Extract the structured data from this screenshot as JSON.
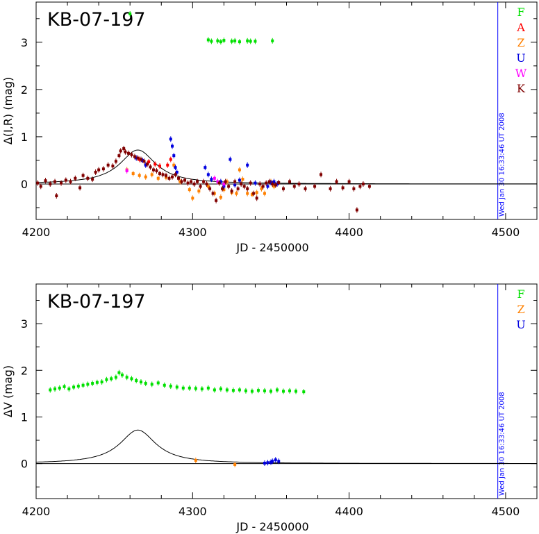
{
  "colors": {
    "F": "#00e000",
    "A": "#ff0000",
    "Z": "#ff8000",
    "U": "#0000e0",
    "W": "#ff00ff",
    "K": "#800000",
    "date_line": "#0000ff",
    "model": "#000000"
  },
  "chart_data": [
    {
      "type": "scatter",
      "title": "KB-07-197",
      "xlabel": "JD - 2450000",
      "ylabel": "Δ(I,R) (mag)",
      "xlim": [
        4200,
        4520
      ],
      "ylim": [
        -0.75,
        3.85
      ],
      "x_ticks": [
        4200,
        4300,
        4400,
        4500
      ],
      "y_ticks": [
        0,
        1,
        2,
        3
      ],
      "legend": [
        "F",
        "A",
        "Z",
        "U",
        "W",
        "K"
      ],
      "legend_position": "top-right",
      "date_line_x": 4495,
      "date_label": "Wed Jan 30 16:33:46 UT 2008",
      "model": {
        "t0": 4265,
        "peak": 0.72,
        "width": 14
      },
      "series": [
        {
          "name": "F",
          "points": [
            [
              4260,
              3.6
            ],
            [
              4310,
              3.05
            ],
            [
              4312,
              3.02
            ],
            [
              4316,
              3.03
            ],
            [
              4318,
              3.01
            ],
            [
              4320,
              3.04
            ],
            [
              4325,
              3.02
            ],
            [
              4327,
              3.03
            ],
            [
              4330,
              3.01
            ],
            [
              4335,
              3.03
            ],
            [
              4337,
              3.02
            ],
            [
              4340,
              3.02
            ],
            [
              4351,
              3.03
            ]
          ]
        },
        {
          "name": "A",
          "points": [
            [
              4266,
              0.52
            ],
            [
              4272,
              0.47
            ],
            [
              4276,
              0.42
            ],
            [
              4279,
              0.38
            ],
            [
              4284,
              0.4
            ],
            [
              4286,
              0.52
            ]
          ]
        },
        {
          "name": "Z",
          "points": [
            [
              4258,
              0.3
            ],
            [
              4262,
              0.22
            ],
            [
              4266,
              0.18
            ],
            [
              4270,
              0.15
            ],
            [
              4274,
              0.2
            ],
            [
              4278,
              0.12
            ],
            [
              4283,
              0.14
            ],
            [
              4288,
              0.4
            ],
            [
              4292,
              0.05
            ],
            [
              4298,
              -0.12
            ],
            [
              4300,
              -0.3
            ],
            [
              4304,
              -0.15
            ],
            [
              4310,
              -0.05
            ],
            [
              4314,
              -0.2
            ],
            [
              4318,
              -0.28
            ],
            [
              4320,
              -0.12
            ],
            [
              4322,
              0.05
            ],
            [
              4325,
              -0.18
            ],
            [
              4328,
              -0.2
            ],
            [
              4330,
              0.3
            ],
            [
              4332,
              0.1
            ],
            [
              4335,
              -0.2
            ],
            [
              4338,
              -0.22
            ],
            [
              4341,
              -0.18
            ],
            [
              4344,
              -0.1
            ],
            [
              4346,
              -0.2
            ],
            [
              4350,
              0.05
            ],
            [
              4352,
              -0.05
            ]
          ]
        },
        {
          "name": "U",
          "points": [
            [
              4264,
              0.55
            ],
            [
              4268,
              0.5
            ],
            [
              4270,
              0.4
            ],
            [
              4286,
              0.95
            ],
            [
              4287,
              0.8
            ],
            [
              4288,
              0.6
            ],
            [
              4289,
              0.35
            ],
            [
              4290,
              0.25
            ],
            [
              4308,
              0.35
            ],
            [
              4310,
              0.2
            ],
            [
              4312,
              0.1
            ],
            [
              4318,
              0.05
            ],
            [
              4320,
              -0.05
            ],
            [
              4324,
              0.52
            ],
            [
              4327,
              -0.02
            ],
            [
              4330,
              0.08
            ],
            [
              4335,
              0.4
            ],
            [
              4340,
              0.02
            ],
            [
              4348,
              -0.05
            ],
            [
              4350,
              0.03
            ],
            [
              4352,
              0.05
            ],
            [
              4354,
              0.0
            ]
          ]
        },
        {
          "name": "W",
          "points": [
            [
              4258,
              0.28
            ],
            [
              4314,
              0.12
            ],
            [
              4316,
              0.05
            ],
            [
              4320,
              0.0
            ]
          ]
        },
        {
          "name": "K",
          "points": [
            [
              4201,
              0.02
            ],
            [
              4203,
              -0.05
            ],
            [
              4206,
              0.07
            ],
            [
              4209,
              0.0
            ],
            [
              4212,
              0.05
            ],
            [
              4213,
              -0.25
            ],
            [
              4216,
              0.02
            ],
            [
              4219,
              0.08
            ],
            [
              4222,
              0.05
            ],
            [
              4225,
              0.12
            ],
            [
              4228,
              -0.08
            ],
            [
              4230,
              0.18
            ],
            [
              4233,
              0.12
            ],
            [
              4236,
              0.1
            ],
            [
              4238,
              0.25
            ],
            [
              4240,
              0.3
            ],
            [
              4243,
              0.32
            ],
            [
              4246,
              0.4
            ],
            [
              4249,
              0.38
            ],
            [
              4251,
              0.48
            ],
            [
              4253,
              0.6
            ],
            [
              4254,
              0.7
            ],
            [
              4256,
              0.75
            ],
            [
              4257,
              0.68
            ],
            [
              4259,
              0.65
            ],
            [
              4261,
              0.62
            ],
            [
              4263,
              0.58
            ],
            [
              4265,
              0.55
            ],
            [
              4267,
              0.52
            ],
            [
              4269,
              0.48
            ],
            [
              4271,
              0.42
            ],
            [
              4273,
              0.36
            ],
            [
              4275,
              0.3
            ],
            [
              4277,
              0.28
            ],
            [
              4279,
              0.22
            ],
            [
              4281,
              0.2
            ],
            [
              4283,
              0.18
            ],
            [
              4285,
              0.12
            ],
            [
              4287,
              0.15
            ],
            [
              4289,
              0.2
            ],
            [
              4291,
              0.12
            ],
            [
              4293,
              0.05
            ],
            [
              4295,
              0.08
            ],
            [
              4297,
              0.02
            ],
            [
              4299,
              0.05
            ],
            [
              4301,
              0.0
            ],
            [
              4303,
              0.05
            ],
            [
              4305,
              -0.05
            ],
            [
              4307,
              0.05
            ],
            [
              4309,
              0.0
            ],
            [
              4311,
              -0.1
            ],
            [
              4313,
              -0.2
            ],
            [
              4315,
              -0.35
            ],
            [
              4317,
              0.02
            ],
            [
              4319,
              -0.1
            ],
            [
              4321,
              0.05
            ],
            [
              4323,
              -0.05
            ],
            [
              4325,
              -0.15
            ],
            [
              4327,
              0.05
            ],
            [
              4329,
              -0.1
            ],
            [
              4331,
              0.0
            ],
            [
              4333,
              -0.05
            ],
            [
              4335,
              -0.1
            ],
            [
              4337,
              0.02
            ],
            [
              4339,
              -0.2
            ],
            [
              4341,
              -0.3
            ],
            [
              4343,
              0.0
            ],
            [
              4345,
              -0.05
            ],
            [
              4347,
              0.02
            ],
            [
              4349,
              0.05
            ],
            [
              4351,
              0.0
            ],
            [
              4353,
              -0.02
            ],
            [
              4355,
              0.03
            ],
            [
              4358,
              -0.1
            ],
            [
              4362,
              0.05
            ],
            [
              4365,
              -0.05
            ],
            [
              4368,
              0.0
            ],
            [
              4372,
              -0.1
            ],
            [
              4378,
              -0.05
            ],
            [
              4382,
              0.2
            ],
            [
              4388,
              -0.1
            ],
            [
              4392,
              0.05
            ],
            [
              4396,
              -0.08
            ],
            [
              4400,
              0.05
            ],
            [
              4403,
              -0.1
            ],
            [
              4405,
              -0.55
            ],
            [
              4407,
              -0.05
            ],
            [
              4409,
              0.0
            ],
            [
              4413,
              -0.05
            ]
          ]
        }
      ]
    },
    {
      "type": "scatter",
      "title": "KB-07-197",
      "xlabel": "JD - 2450000",
      "ylabel": "ΔV (mag)",
      "xlim": [
        4200,
        4520
      ],
      "ylim": [
        -0.75,
        3.85
      ],
      "x_ticks": [
        4200,
        4300,
        4400,
        4500
      ],
      "y_ticks": [
        0,
        1,
        2,
        3
      ],
      "legend": [
        "F",
        "Z",
        "U"
      ],
      "legend_position": "top-right",
      "date_line_x": 4495,
      "date_label": "Wed Jan 30 16:33:46 UT 2008",
      "model": {
        "t0": 4265,
        "peak": 0.72,
        "width": 14
      },
      "series": [
        {
          "name": "F",
          "points": [
            [
              4209,
              1.58
            ],
            [
              4212,
              1.6
            ],
            [
              4215,
              1.62
            ],
            [
              4218,
              1.65
            ],
            [
              4221,
              1.6
            ],
            [
              4224,
              1.64
            ],
            [
              4227,
              1.66
            ],
            [
              4230,
              1.68
            ],
            [
              4233,
              1.7
            ],
            [
              4236,
              1.72
            ],
            [
              4239,
              1.74
            ],
            [
              4242,
              1.75
            ],
            [
              4245,
              1.8
            ],
            [
              4248,
              1.82
            ],
            [
              4251,
              1.85
            ],
            [
              4253,
              1.95
            ],
            [
              4255,
              1.9
            ],
            [
              4258,
              1.85
            ],
            [
              4261,
              1.82
            ],
            [
              4264,
              1.78
            ],
            [
              4267,
              1.75
            ],
            [
              4270,
              1.72
            ],
            [
              4274,
              1.7
            ],
            [
              4278,
              1.73
            ],
            [
              4282,
              1.68
            ],
            [
              4286,
              1.66
            ],
            [
              4290,
              1.64
            ],
            [
              4294,
              1.62
            ],
            [
              4298,
              1.62
            ],
            [
              4302,
              1.61
            ],
            [
              4306,
              1.6
            ],
            [
              4310,
              1.62
            ],
            [
              4314,
              1.58
            ],
            [
              4318,
              1.6
            ],
            [
              4322,
              1.58
            ],
            [
              4326,
              1.57
            ],
            [
              4330,
              1.58
            ],
            [
              4334,
              1.56
            ],
            [
              4338,
              1.55
            ],
            [
              4342,
              1.57
            ],
            [
              4346,
              1.56
            ],
            [
              4350,
              1.55
            ],
            [
              4354,
              1.58
            ],
            [
              4358,
              1.55
            ],
            [
              4362,
              1.56
            ],
            [
              4366,
              1.55
            ],
            [
              4371,
              1.54
            ]
          ]
        },
        {
          "name": "Z",
          "points": [
            [
              4302,
              0.07
            ],
            [
              4327,
              -0.02
            ]
          ]
        },
        {
          "name": "U",
          "points": [
            [
              4346,
              0.01
            ],
            [
              4348,
              0.02
            ],
            [
              4350,
              0.03
            ],
            [
              4351,
              0.05
            ],
            [
              4353,
              0.08
            ],
            [
              4355,
              0.05
            ]
          ]
        }
      ]
    }
  ]
}
